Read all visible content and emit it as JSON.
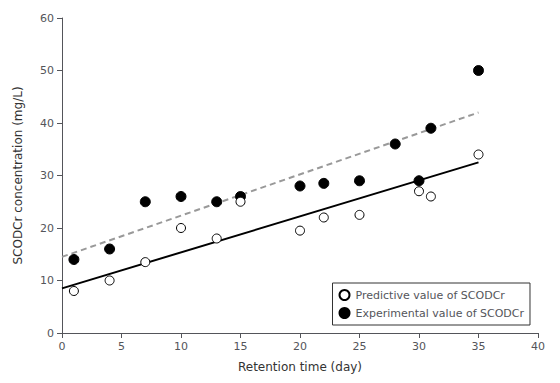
{
  "chart_data": {
    "type": "scatter",
    "xlabel": "Retention time (day)",
    "ylabel": "SCODCr concentration (mg/L)",
    "series": [
      {
        "name": "Predictive value of SCODCr",
        "type": "scatter",
        "marker": "circle-open",
        "color": "#000000",
        "x": [
          1,
          4,
          7,
          10,
          13,
          15,
          20,
          22,
          25,
          30,
          31,
          35
        ],
        "values": [
          8,
          10,
          13.5,
          20,
          18,
          25,
          19.5,
          22,
          22.5,
          27,
          26,
          34
        ]
      },
      {
        "name": "Experimental value of SCODCr",
        "type": "scatter",
        "marker": "circle",
        "color": "#000000",
        "x": [
          1,
          4,
          7,
          10,
          13,
          15,
          20,
          22,
          25,
          28,
          30,
          31,
          35
        ],
        "values": [
          14,
          16,
          25,
          26,
          25,
          26,
          28,
          28.5,
          29,
          36,
          29,
          39,
          50
        ]
      },
      {
        "type": "line",
        "line_style": "solid",
        "color": "#000000",
        "x": [
          0,
          35
        ],
        "values": [
          8.5,
          32.5
        ]
      },
      {
        "type": "line",
        "line_style": "dashed",
        "color": "#999999",
        "x": [
          0,
          35
        ],
        "values": [
          14.5,
          42.0
        ]
      }
    ],
    "xlim": [
      0,
      40
    ],
    "ylim": [
      0,
      60
    ],
    "xticks": [
      0,
      5,
      10,
      15,
      20,
      25,
      30,
      35,
      40
    ],
    "yticks": [
      0,
      10,
      20,
      30,
      40,
      50,
      60
    ],
    "grid": false,
    "legend": "lower right"
  }
}
